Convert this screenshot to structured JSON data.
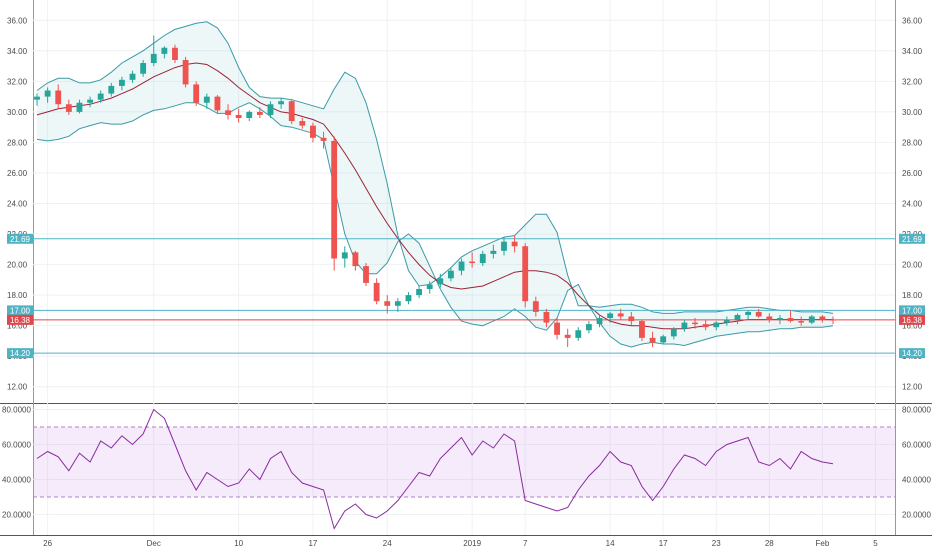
{
  "chart_data": [
    {
      "type": "candlestick",
      "title": "",
      "ylim": [
        11,
        37
      ],
      "yticks": [
        "12.00",
        "14.00",
        "16.00",
        "18.00",
        "20.00",
        "22.00",
        "24.00",
        "26.00",
        "28.00",
        "30.00",
        "32.00",
        "34.00",
        "36.00"
      ],
      "ytick_values": [
        12,
        14,
        16,
        18,
        20,
        22,
        24,
        26,
        28,
        30,
        32,
        34,
        36
      ],
      "xticks": [
        {
          "label": "26",
          "index": 1
        },
        {
          "label": "Dec",
          "index": 11
        },
        {
          "label": "10",
          "index": 19
        },
        {
          "label": "17",
          "index": 26
        },
        {
          "label": "24",
          "index": 33
        },
        {
          "label": "2019",
          "index": 41
        },
        {
          "label": "7",
          "index": 46
        },
        {
          "label": "14",
          "index": 54
        },
        {
          "label": "17",
          "index": 59
        },
        {
          "label": "23",
          "index": 64
        },
        {
          "label": "28",
          "index": 69
        },
        {
          "label": "Feb",
          "index": 74
        },
        {
          "label": "5",
          "index": 79
        }
      ],
      "price_levels": [
        {
          "label": "21.69",
          "value": 21.69,
          "color": "#4fb3c4"
        },
        {
          "label": "17.00",
          "value": 17.0,
          "color": "#4fb3c4"
        },
        {
          "label": "16.38",
          "value": 16.38,
          "color": "#e0474c"
        },
        {
          "label": "14.20",
          "value": 14.2,
          "color": "#4fb3c4"
        }
      ],
      "series": [
        {
          "name": "OHLC",
          "values": [
            [
              30.8,
              31.2,
              30.4,
              31.0
            ],
            [
              31.0,
              31.6,
              30.6,
              31.4
            ],
            [
              31.4,
              31.8,
              30.2,
              30.5
            ],
            [
              30.5,
              30.8,
              29.8,
              30.0
            ],
            [
              30.0,
              30.8,
              29.9,
              30.6
            ],
            [
              30.6,
              31.0,
              30.3,
              30.8
            ],
            [
              30.8,
              31.4,
              30.6,
              31.2
            ],
            [
              31.2,
              31.9,
              31.0,
              31.7
            ],
            [
              31.7,
              32.3,
              31.4,
              32.1
            ],
            [
              32.1,
              32.7,
              31.9,
              32.5
            ],
            [
              32.5,
              33.4,
              32.3,
              33.2
            ],
            [
              33.2,
              35.0,
              33.0,
              33.8
            ],
            [
              33.8,
              34.3,
              33.5,
              34.2
            ],
            [
              34.2,
              34.4,
              33.2,
              33.4
            ],
            [
              33.4,
              33.6,
              31.6,
              31.8
            ],
            [
              31.8,
              32.0,
              30.4,
              30.6
            ],
            [
              30.6,
              31.2,
              30.2,
              31.0
            ],
            [
              31.0,
              31.1,
              29.9,
              30.1
            ],
            [
              30.1,
              30.5,
              29.5,
              29.8
            ],
            [
              29.8,
              30.2,
              29.3,
              29.6
            ],
            [
              29.6,
              30.1,
              29.4,
              30.0
            ],
            [
              30.0,
              30.3,
              29.6,
              29.8
            ],
            [
              29.8,
              30.7,
              29.6,
              30.5
            ],
            [
              30.5,
              30.9,
              30.2,
              30.7
            ],
            [
              30.7,
              30.8,
              29.2,
              29.4
            ],
            [
              29.4,
              29.6,
              28.9,
              29.1
            ],
            [
              29.1,
              29.3,
              28.0,
              28.3
            ],
            [
              28.3,
              28.7,
              27.6,
              28.1
            ],
            [
              28.1,
              28.4,
              19.6,
              20.4
            ],
            [
              20.4,
              21.2,
              19.8,
              20.8
            ],
            [
              20.8,
              20.9,
              19.6,
              19.9
            ],
            [
              19.9,
              20.1,
              18.6,
              18.8
            ],
            [
              18.8,
              19.1,
              17.4,
              17.6
            ],
            [
              17.6,
              18.0,
              16.8,
              17.3
            ],
            [
              17.3,
              17.8,
              16.9,
              17.6
            ],
            [
              17.6,
              18.2,
              17.4,
              18.0
            ],
            [
              18.0,
              18.6,
              17.8,
              18.4
            ],
            [
              18.4,
              18.9,
              18.1,
              18.7
            ],
            [
              18.7,
              19.4,
              18.5,
              19.1
            ],
            [
              19.1,
              19.8,
              18.9,
              19.6
            ],
            [
              19.6,
              20.4,
              19.3,
              20.2
            ],
            [
              20.2,
              20.8,
              19.8,
              20.1
            ],
            [
              20.1,
              20.9,
              19.9,
              20.7
            ],
            [
              20.7,
              21.3,
              20.4,
              20.9
            ],
            [
              20.9,
              21.8,
              20.6,
              21.5
            ],
            [
              21.5,
              21.9,
              20.8,
              21.2
            ],
            [
              21.2,
              21.4,
              17.2,
              17.6
            ],
            [
              17.6,
              17.9,
              16.6,
              16.9
            ],
            [
              16.9,
              17.1,
              15.9,
              16.2
            ],
            [
              16.2,
              16.5,
              15.1,
              15.4
            ],
            [
              15.4,
              15.8,
              14.6,
              15.2
            ],
            [
              15.2,
              15.9,
              15.0,
              15.7
            ],
            [
              15.7,
              16.3,
              15.5,
              16.1
            ],
            [
              16.1,
              16.7,
              15.9,
              16.5
            ],
            [
              16.5,
              16.9,
              16.2,
              16.8
            ],
            [
              16.8,
              17.1,
              16.4,
              16.6
            ],
            [
              16.6,
              16.9,
              16.0,
              16.3
            ],
            [
              16.3,
              16.4,
              15.0,
              15.2
            ],
            [
              15.2,
              15.6,
              14.6,
              14.9
            ],
            [
              14.9,
              15.4,
              14.8,
              15.3
            ],
            [
              15.3,
              15.9,
              15.1,
              15.8
            ],
            [
              15.8,
              16.4,
              15.6,
              16.2
            ],
            [
              16.2,
              16.5,
              15.8,
              16.1
            ],
            [
              16.1,
              16.4,
              15.7,
              15.9
            ],
            [
              15.9,
              16.3,
              15.7,
              16.2
            ],
            [
              16.2,
              16.6,
              16.0,
              16.4
            ],
            [
              16.4,
              16.8,
              16.1,
              16.7
            ],
            [
              16.7,
              17.0,
              16.4,
              16.9
            ],
            [
              16.9,
              17.1,
              16.5,
              16.6
            ],
            [
              16.6,
              16.8,
              16.2,
              16.4
            ],
            [
              16.4,
              16.7,
              16.1,
              16.5
            ],
            [
              16.5,
              17.0,
              16.2,
              16.3
            ],
            [
              16.3,
              16.6,
              16.0,
              16.2
            ],
            [
              16.2,
              16.7,
              16.1,
              16.6
            ],
            [
              16.6,
              16.7,
              16.2,
              16.4
            ],
            [
              16.4,
              16.6,
              16.1,
              16.38
            ]
          ]
        },
        {
          "name": "",
          "role": "bb_upper",
          "values": [
            31.4,
            31.9,
            32.2,
            32.2,
            31.9,
            31.9,
            32.1,
            32.6,
            33.2,
            33.6,
            34.0,
            34.5,
            35.0,
            35.4,
            35.6,
            35.8,
            35.9,
            35.5,
            34.5,
            32.9,
            31.6,
            31.0,
            30.9,
            30.9,
            30.8,
            30.6,
            30.4,
            30.2,
            31.5,
            32.6,
            32.2,
            30.6,
            28.2,
            25.3,
            21.9,
            19.6,
            18.6,
            18.7,
            19.2,
            19.8,
            20.5,
            20.9,
            21.2,
            21.5,
            21.8,
            21.9,
            22.6,
            23.3,
            23.3,
            22.1,
            19.3,
            17.3,
            17.3,
            17.2,
            17.3,
            17.4,
            17.4,
            17.2,
            16.9,
            16.8,
            16.8,
            16.9,
            16.9,
            16.9,
            16.9,
            17.0,
            17.1,
            17.2,
            17.2,
            17.1,
            17.0,
            17.0,
            16.9,
            16.9,
            16.9,
            16.8
          ]
        },
        {
          "name": "",
          "role": "bb_basis",
          "values": [
            29.8,
            30.0,
            30.2,
            30.3,
            30.4,
            30.5,
            30.7,
            30.9,
            31.2,
            31.5,
            31.9,
            32.3,
            32.6,
            32.9,
            33.1,
            33.2,
            33.1,
            32.7,
            32.2,
            31.6,
            31.1,
            30.6,
            30.3,
            30.0,
            29.9,
            29.7,
            29.5,
            29.2,
            28.3,
            27.3,
            26.2,
            25.0,
            23.8,
            22.7,
            21.7,
            20.8,
            20.0,
            19.3,
            18.8,
            18.5,
            18.4,
            18.5,
            18.6,
            18.9,
            19.2,
            19.5,
            19.6,
            19.6,
            19.5,
            19.3,
            18.8,
            18.0,
            17.3,
            16.7,
            16.3,
            16.1,
            16.0,
            16.0,
            15.9,
            15.8,
            15.8,
            15.8,
            15.9,
            16.0,
            16.1,
            16.2,
            16.3,
            16.4,
            16.4,
            16.4,
            16.4,
            16.4,
            16.4,
            16.4,
            16.4,
            16.4
          ]
        },
        {
          "name": "",
          "role": "bb_lower",
          "values": [
            28.2,
            28.1,
            28.2,
            28.4,
            28.9,
            29.1,
            29.3,
            29.2,
            29.2,
            29.4,
            29.8,
            30.1,
            30.2,
            30.4,
            30.6,
            30.6,
            30.3,
            29.9,
            29.9,
            30.3,
            30.6,
            30.2,
            29.7,
            29.1,
            29.0,
            28.8,
            28.6,
            28.2,
            25.1,
            22.0,
            20.2,
            19.4,
            19.4,
            20.1,
            21.5,
            22.0,
            21.4,
            19.9,
            18.4,
            17.2,
            16.3,
            16.1,
            16.0,
            16.3,
            16.6,
            17.1,
            16.6,
            15.9,
            15.7,
            16.5,
            18.3,
            18.7,
            17.3,
            16.2,
            15.3,
            14.8,
            14.6,
            14.8,
            14.9,
            14.8,
            14.8,
            14.7,
            14.9,
            15.1,
            15.3,
            15.4,
            15.5,
            15.6,
            15.6,
            15.7,
            15.8,
            15.8,
            15.9,
            15.9,
            15.9,
            16.0
          ]
        }
      ]
    },
    {
      "type": "line",
      "title": "",
      "ylim": [
        10,
        82
      ],
      "yticks": [
        "20.0000",
        "40.0000",
        "60.0000",
        "80.0000"
      ],
      "ytick_values": [
        20,
        40,
        60,
        80
      ],
      "band": [
        30,
        70
      ],
      "series": [
        {
          "name": "",
          "values": [
            52,
            56,
            53,
            45,
            55,
            50,
            62,
            58,
            65,
            60,
            66,
            80,
            75,
            60,
            45,
            34,
            44,
            40,
            36,
            38,
            46,
            40,
            52,
            56,
            44,
            38,
            36,
            34,
            12,
            22,
            26,
            20,
            18,
            22,
            28,
            36,
            44,
            42,
            52,
            58,
            64,
            54,
            62,
            58,
            66,
            62,
            28,
            26,
            24,
            22,
            24,
            34,
            42,
            48,
            56,
            50,
            48,
            36,
            28,
            36,
            46,
            54,
            52,
            48,
            56,
            60,
            62,
            64,
            50,
            48,
            52,
            46,
            56,
            52,
            50,
            49
          ]
        }
      ]
    }
  ]
}
